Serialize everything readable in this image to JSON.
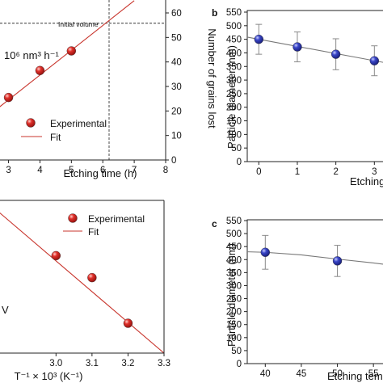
{
  "chart_data": [
    {
      "panel": "a",
      "type": "scatter",
      "xlabel": "Etching time (h)",
      "ylabel": "",
      "y2label": "Number of grains lost",
      "annotation_rate": "10⁶ nm³ h⁻¹",
      "xlim": [
        2.6,
        8
      ],
      "y2lim": [
        0,
        60
      ],
      "x_ticks": [
        "3",
        "4",
        "5",
        "6",
        "7",
        "8"
      ],
      "y2_ticks": [
        "0",
        "10",
        "20",
        "30",
        "40",
        "50",
        "60"
      ],
      "reference_line": {
        "label": "Initial volume",
        "x": 6.2,
        "y2": 55.8
      },
      "legend": [
        "Experimental",
        "Fit"
      ],
      "series": [
        {
          "name": "Experimental",
          "points": [
            [
              3,
              25.5
            ],
            [
              4,
              36.5
            ],
            [
              5,
              44.5
            ]
          ]
        },
        {
          "name": "Fit",
          "line": [
            [
              2.6,
              20.5
            ],
            [
              7,
              65
            ]
          ]
        }
      ]
    },
    {
      "panel": "b",
      "type": "scatter",
      "xlabel": "Etching",
      "ylabel": "Particle diameter (nm)",
      "xlim": [
        -0.3,
        3.35
      ],
      "ylim": [
        0,
        550
      ],
      "x_ticks": [
        "0",
        "1",
        "2",
        "3"
      ],
      "y_ticks": [
        "0",
        "50",
        "100",
        "150",
        "200",
        "250",
        "300",
        "350",
        "400",
        "450",
        "500",
        "550"
      ],
      "series": [
        {
          "name": "",
          "x": [
            0,
            1,
            2,
            3
          ],
          "y": [
            450,
            422,
            395,
            371
          ],
          "err": [
            55,
            55,
            57,
            55
          ]
        }
      ],
      "fit": [
        [
          -0.3,
          458
        ],
        [
          3.35,
          362
        ]
      ]
    },
    {
      "panel": "",
      "type": "scatter",
      "xlabel": "T⁻¹ × 10³ (K⁻¹)",
      "ylabel": "",
      "annotation_unit": "V",
      "xlim": [
        2.84,
        3.3
      ],
      "x_ticks": [
        "3.0",
        "3.1",
        "3.2",
        "3.3"
      ],
      "legend": [
        "Experimental",
        "Fit"
      ],
      "series": [
        {
          "name": "Experimental",
          "points": [
            [
              3.0,
              1.45
            ],
            [
              3.1,
              0.92
            ],
            [
              3.2,
              -0.18
            ]
          ]
        },
        {
          "name": "Fit",
          "line": [
            [
              2.84,
              2.51
            ],
            [
              3.3,
              -0.9
            ]
          ]
        }
      ]
    },
    {
      "panel": "c",
      "type": "scatter",
      "xlabel": "Etching tem",
      "ylabel": "Particle diameter (nm)",
      "xlim": [
        37.5,
        57
      ],
      "ylim": [
        0,
        550
      ],
      "x_ticks": [
        "40",
        "45",
        "50",
        "55"
      ],
      "y_ticks": [
        "0",
        "50",
        "100",
        "150",
        "200",
        "250",
        "300",
        "350",
        "400",
        "450",
        "500",
        "550"
      ],
      "series": [
        {
          "name": "",
          "x": [
            40,
            50
          ],
          "y": [
            428,
            395
          ],
          "err": [
            65,
            60
          ]
        }
      ],
      "fit_curve": [
        [
          37.5,
          430
        ],
        [
          40,
          428
        ],
        [
          45,
          418
        ],
        [
          50,
          402
        ],
        [
          55,
          387
        ],
        [
          57,
          380
        ]
      ]
    }
  ]
}
